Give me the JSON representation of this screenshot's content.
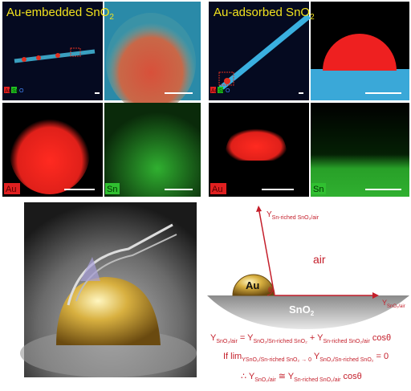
{
  "top_left": {
    "title": "Au-embedded SnO",
    "title_sub": "2",
    "legend": [
      "Au",
      "Sn",
      "O"
    ],
    "label_au": "Au",
    "label_sn": "Sn"
  },
  "top_right": {
    "title": "Au-adsorbed SnO",
    "title_sub": "2",
    "legend": [
      "Au",
      "Sn",
      "O"
    ],
    "label_au": "Au",
    "label_sn": "Sn"
  },
  "diagram": {
    "gamma_top": {
      "text": "Y",
      "sub": "Sn-riched SnO₂/air"
    },
    "air": "air",
    "particle": "Au",
    "angle": "θ",
    "substrate": "SnO",
    "substrate_sub": "2",
    "gamma_right": {
      "text": "Y",
      "sub": "SnO₂/air"
    }
  },
  "equations": [
    [
      {
        "text": "Y",
        "sub": "SnO₂/air"
      },
      {
        "text": " = Y",
        "sub": "SnO₂/Sn-riched SnO₂"
      },
      {
        "text": " + Y",
        "sub": "Sn-riched SnO₂/air"
      },
      {
        "text": " cosθ"
      }
    ],
    [
      {
        "text": "If  lim",
        "sub": "YSnO₂/Sn-riched SnO₂ → 0"
      },
      {
        "text": "  Y",
        "sub": "SnO₂/Sn-riched SnO₂"
      },
      {
        "text": " = 0"
      }
    ],
    [
      {
        "text": "∴ Y",
        "sub": "SnO₂/air"
      },
      {
        "text": " ≅ Y",
        "sub": "Sn-riched SnO₂/air"
      },
      {
        "text": " cosθ"
      }
    ]
  ]
}
